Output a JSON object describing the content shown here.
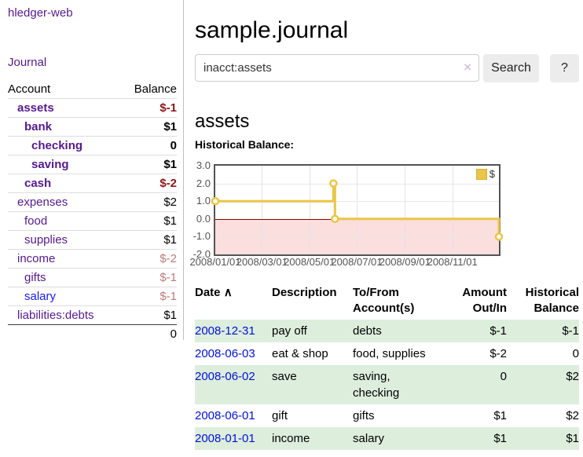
{
  "colors": {
    "link_purple": "#551a8b",
    "link_blue": "#1a1aee",
    "date_link_blue": "#0011d4",
    "negative_strong": "#8c1616",
    "negative_muted": "#bd7a7a",
    "row_stripe_green": "#ddeedd",
    "chart_line_gold": "#e9c648",
    "chart_negative_fill": "#fbdede",
    "chart_zero_line": "#8b0000",
    "button_bg": "#ececec"
  },
  "app": {
    "title": "hledger-web"
  },
  "sidebar": {
    "journal_link": "Journal",
    "accounts_table": {
      "account_header": "Account",
      "balance_header": "Balance",
      "rows": [
        {
          "name": "assets",
          "balance": "$-1",
          "level": 1,
          "bold": true,
          "balance_color": "negative_strong"
        },
        {
          "name": "bank",
          "balance": "$1",
          "level": 2,
          "bold": true,
          "balance_color": "normal"
        },
        {
          "name": "checking",
          "balance": "0",
          "level": 3,
          "bold": true,
          "balance_color": "normal"
        },
        {
          "name": "saving",
          "balance": "$1",
          "level": 3,
          "bold": true,
          "balance_color": "normal"
        },
        {
          "name": "cash",
          "balance": "$-2",
          "level": 2,
          "bold": true,
          "balance_color": "negative_strong"
        },
        {
          "name": "expenses",
          "balance": "$2",
          "level": 1,
          "bold": false,
          "balance_color": "normal"
        },
        {
          "name": "food",
          "balance": "$1",
          "level": 2,
          "bold": false,
          "balance_color": "normal"
        },
        {
          "name": "supplies",
          "balance": "$1",
          "level": 2,
          "bold": false,
          "balance_color": "normal"
        },
        {
          "name": "income",
          "balance": "$-2",
          "level": 1,
          "bold": false,
          "balance_color": "negative_muted"
        },
        {
          "name": "gifts",
          "balance": "$-1",
          "level": 2,
          "bold": false,
          "balance_color": "negative_muted"
        },
        {
          "name": "salary",
          "balance": "$-1",
          "level": 2,
          "bold": false,
          "balance_color": "negative_muted",
          "link_color": "blue"
        },
        {
          "name": "liabilities:debts",
          "balance": "$1",
          "level": 1,
          "bold": false,
          "balance_color": "normal"
        }
      ],
      "total": "0"
    }
  },
  "main": {
    "title": "sample.journal",
    "search": {
      "value": "inacct:assets",
      "clear_icon": "×",
      "search_button": "Search",
      "help_button": "?"
    },
    "account_heading": "assets",
    "chart_heading": "Historical Balance:",
    "chart_data": {
      "type": "line",
      "step": true,
      "series": [
        {
          "name": "$",
          "color": "#e9c648",
          "points": [
            [
              "2008-01-01",
              1.0
            ],
            [
              "2008-06-01",
              2.0
            ],
            [
              "2008-06-03",
              0.0
            ],
            [
              "2008-12-31",
              -1.0
            ]
          ]
        }
      ],
      "x_range": [
        "2008-01-01",
        "2008-12-31"
      ],
      "x_ticks": [
        "2008/01/01",
        "2008/03/01",
        "2008/05/01",
        "2008/07/01",
        "2008/09/01",
        "2008/11/01"
      ],
      "x_tick_dates": [
        "2008-01-01",
        "2008-03-01",
        "2008-05-01",
        "2008-07-01",
        "2008-09-01",
        "2008-11-01"
      ],
      "y_ticks": [
        "3.0",
        "2.0",
        "1.0",
        "0.0",
        "-1.0",
        "-2.0"
      ],
      "ylim": [
        -2,
        3
      ],
      "grid": true,
      "negative_region_shaded": true,
      "legend": [
        {
          "label": "$",
          "color": "#e9c648"
        }
      ],
      "legend_position": "top-right"
    },
    "register": {
      "headers": {
        "date": "Date",
        "description": "Description",
        "account": "To/From Account(s)",
        "amount": "Amount Out/In",
        "balance": "Historical Balance"
      },
      "sort_icon": "∧",
      "rows": [
        {
          "date": "2008-12-31",
          "description": "pay off",
          "accounts": [
            "debts"
          ],
          "amount": "$-1",
          "balance": "$-1"
        },
        {
          "date": "2008-06-03",
          "description": "eat & shop",
          "accounts": [
            "food, supplies"
          ],
          "amount": "$-2",
          "balance": "0"
        },
        {
          "date": "2008-06-02",
          "description": "save",
          "accounts": [
            "saving,",
            "checking"
          ],
          "amount": "0",
          "balance": "$2"
        },
        {
          "date": "2008-06-01",
          "description": "gift",
          "accounts": [
            "gifts"
          ],
          "amount": "$1",
          "balance": "$2"
        },
        {
          "date": "2008-01-01",
          "description": "income",
          "accounts": [
            "salary"
          ],
          "amount": "$1",
          "balance": "$1"
        }
      ]
    }
  }
}
